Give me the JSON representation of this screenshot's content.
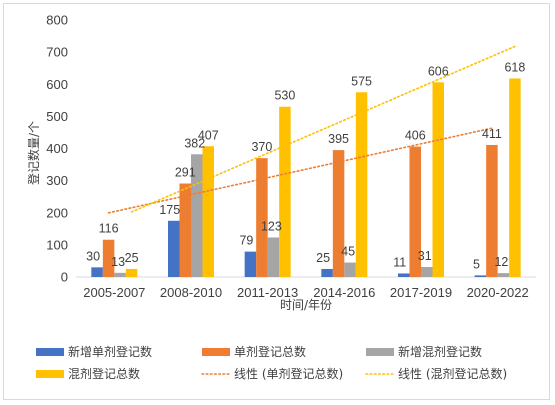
{
  "chart_data": {
    "type": "bar",
    "categories": [
      "2005-2007",
      "2008-2010",
      "2011-2013",
      "2014-2016",
      "2017-2019",
      "2020-2022"
    ],
    "series": [
      {
        "name": "新增单剂登记数",
        "color": "#4472C4",
        "values": [
          30,
          175,
          79,
          25,
          11,
          5
        ]
      },
      {
        "name": "单剂登记总数",
        "color": "#ED7D31",
        "values": [
          116,
          291,
          370,
          395,
          406,
          411
        ]
      },
      {
        "name": "新增混剂登记数",
        "color": "#A5A5A5",
        "values": [
          13,
          382,
          123,
          45,
          31,
          12
        ]
      },
      {
        "name": "混剂登记总数",
        "color": "#FFC000",
        "values": [
          25,
          407,
          530,
          575,
          606,
          618
        ]
      }
    ],
    "trendlines": [
      {
        "name": "线性 (单剂登记总数)",
        "series": "单剂登记总数",
        "color": "#ED7D31",
        "style": "dotted"
      },
      {
        "name": "线性 (混剂登记总数)",
        "series": "混剂登记总数",
        "color": "#FFC000",
        "style": "dotted"
      }
    ],
    "xlabel": "时间/年份",
    "ylabel": "登记数量/个",
    "ylim": [
      0,
      800
    ],
    "yticks": [
      0,
      100,
      200,
      300,
      400,
      500,
      600,
      700,
      800
    ],
    "grid": false,
    "legend_position": "bottom"
  }
}
